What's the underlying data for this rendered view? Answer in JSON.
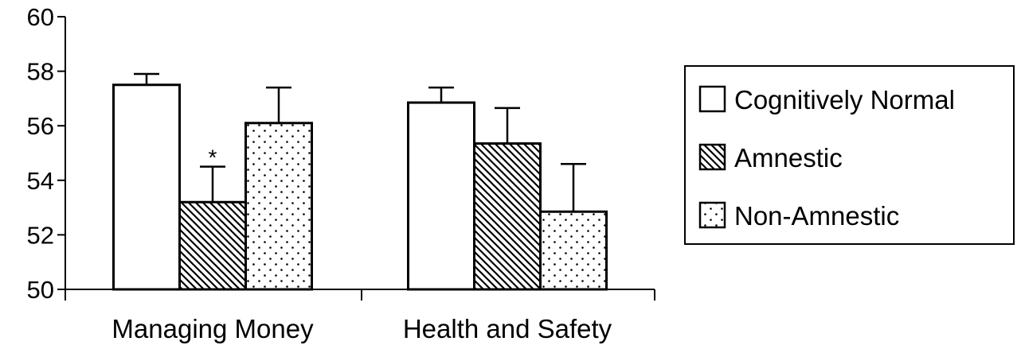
{
  "chart_data": {
    "type": "bar",
    "title": "",
    "xlabel": "",
    "ylabel": "",
    "ylim": [
      50,
      60
    ],
    "yticks": [
      50,
      52,
      54,
      56,
      58,
      60
    ],
    "grid": false,
    "legend_position": "right",
    "categories": [
      "Managing Money",
      "Health and Safety"
    ],
    "series": [
      {
        "name": "Cognitively Normal",
        "pattern": "solid-white",
        "values": [
          57.5,
          56.85
        ],
        "errors": [
          0.4,
          0.55
        ]
      },
      {
        "name": "Amnestic",
        "pattern": "diagonal-hatch",
        "values": [
          53.2,
          55.35
        ],
        "errors": [
          1.3,
          1.3
        ]
      },
      {
        "name": "Non-Amnestic",
        "pattern": "dots",
        "values": [
          56.1,
          52.85
        ],
        "errors": [
          1.3,
          1.75
        ]
      }
    ],
    "annotations": [
      {
        "text": "*",
        "category": "Managing Money",
        "series": "Amnestic"
      }
    ],
    "colors": {
      "axis": "#000000",
      "bar_fill": "#ffffff",
      "bar_stroke": "#000000"
    }
  }
}
